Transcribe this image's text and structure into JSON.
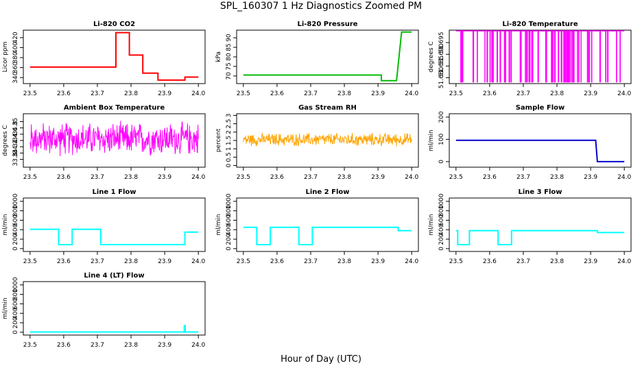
{
  "figure": {
    "title": "SPL_160307  1 Hz Diagnostics Zoomed PM",
    "xlabel": "Hour of Day (UTC)"
  },
  "colors": {
    "red": "#ff0000",
    "green": "#00bb00",
    "magenta": "#ff00ff",
    "orange": "#ffa500",
    "blue": "#0000cc",
    "cyan": "#00ffff"
  },
  "chart_data": [
    {
      "type": "line",
      "title": "Li-820 CO2",
      "ylabel": "Licor ppm",
      "color": "red",
      "mode": "step",
      "xlim": [
        23.48,
        24.02
      ],
      "ylim": [
        328,
        435
      ],
      "yticks": [
        340,
        360,
        380,
        400,
        420
      ],
      "xticks": [
        "23.5",
        "23.6",
        "23.7",
        "23.8",
        "23.9",
        "24.0"
      ],
      "series": [
        {
          "name": "CO2",
          "x": [
            23.5,
            23.755,
            23.755,
            23.795,
            23.795,
            23.835,
            23.835,
            23.88,
            23.88,
            23.96,
            23.96,
            24.0
          ],
          "y": [
            361,
            361,
            430,
            430,
            385,
            385,
            349,
            349,
            335,
            335,
            341,
            341
          ]
        }
      ]
    },
    {
      "type": "line",
      "title": "Li-820 Pressure",
      "ylabel": "kPa",
      "color": "green",
      "mode": "step",
      "xlim": [
        23.48,
        24.02
      ],
      "ylim": [
        66,
        94
      ],
      "yticks": [
        70,
        75,
        80,
        85,
        90
      ],
      "xticks": [
        "23.5",
        "23.6",
        "23.7",
        "23.8",
        "23.9",
        "24.0"
      ],
      "series": [
        {
          "name": "Pressure",
          "x": [
            23.5,
            23.91,
            23.91,
            23.955,
            23.97,
            24.0
          ],
          "y": [
            70.5,
            70.5,
            67.5,
            67.5,
            93,
            93
          ]
        }
      ]
    },
    {
      "type": "line",
      "title": "Li-820 Temperature",
      "ylabel": "degrees C",
      "color": "magenta",
      "mode": "spikes",
      "xlim": [
        23.48,
        24.02
      ],
      "ylim": [
        51.6775,
        51.7003
      ],
      "yticks": [
        51.68,
        51.685,
        51.69,
        51.695
      ],
      "yticklabels": [
        "51.680",
        "51.685",
        "51.690",
        "51.695"
      ],
      "xticks": [
        "23.5",
        "23.6",
        "23.7",
        "23.8",
        "23.9",
        "24.0"
      ],
      "series": [
        {
          "name": "Temperature",
          "base": 51.7,
          "low": 51.678
        }
      ]
    },
    {
      "type": "line",
      "title": "Ambient Box Temperature",
      "ylabel": "degrees C",
      "color": "magenta",
      "mode": "noise",
      "xlim": [
        23.48,
        24.02
      ],
      "ylim": [
        33.55,
        35.25
      ],
      "yticks": [
        33.8,
        34.0,
        34.2,
        34.4,
        34.6,
        34.8,
        35.0
      ],
      "xticks": [
        "23.5",
        "23.6",
        "23.7",
        "23.8",
        "23.9",
        "24.0"
      ],
      "series": [
        {
          "name": "Box Temp",
          "center": 34.45,
          "amplitude": 0.6
        }
      ]
    },
    {
      "type": "line",
      "title": "Gas Stream RH",
      "ylabel": "percent",
      "color": "orange",
      "mode": "noise",
      "xlim": [
        23.48,
        24.02
      ],
      "ylim": [
        -0.1,
        3.1
      ],
      "yticks": [
        0.0,
        0.5,
        1.0,
        1.5,
        2.0,
        2.5,
        3.0
      ],
      "xticks": [
        "23.5",
        "23.6",
        "23.7",
        "23.8",
        "23.9",
        "24.0"
      ],
      "series": [
        {
          "name": "RH",
          "center": 1.55,
          "amplitude": 0.45
        }
      ]
    },
    {
      "type": "line",
      "title": "Sample Flow",
      "ylabel": "ml/min",
      "color": "blue",
      "mode": "step",
      "xlim": [
        23.48,
        24.02
      ],
      "ylim": [
        -25,
        215
      ],
      "yticks": [
        0,
        100,
        200
      ],
      "xticks": [
        "23.5",
        "23.6",
        "23.7",
        "23.8",
        "23.9",
        "24.0"
      ],
      "series": [
        {
          "name": "Sample Flow",
          "x": [
            23.5,
            23.915,
            23.92,
            24.0
          ],
          "y": [
            96,
            96,
            0,
            0
          ]
        }
      ]
    },
    {
      "type": "line",
      "title": "Line 1 Flow",
      "ylabel": "ml/min",
      "color": "cyan",
      "mode": "step",
      "xlim": [
        23.48,
        24.02
      ],
      "ylim": [
        -60,
        1070
      ],
      "yticks": [
        0,
        200,
        400,
        600,
        800,
        1000
      ],
      "xticks": [
        "23.5",
        "23.6",
        "23.7",
        "23.8",
        "23.9",
        "24.0"
      ],
      "series": [
        {
          "name": "Line 1",
          "x": [
            23.5,
            23.585,
            23.585,
            23.625,
            23.625,
            23.71,
            23.71,
            23.96,
            23.96,
            24.0
          ],
          "y": [
            410,
            410,
            85,
            85,
            410,
            410,
            85,
            85,
            350,
            350
          ]
        }
      ]
    },
    {
      "type": "line",
      "title": "Line 2 Flow",
      "ylabel": "ml/min",
      "color": "cyan",
      "mode": "step",
      "xlim": [
        23.48,
        24.02
      ],
      "ylim": [
        -60,
        1070
      ],
      "yticks": [
        0,
        200,
        400,
        600,
        800,
        1000
      ],
      "xticks": [
        "23.5",
        "23.6",
        "23.7",
        "23.8",
        "23.9",
        "24.0"
      ],
      "series": [
        {
          "name": "Line 2",
          "x": [
            23.5,
            23.54,
            23.54,
            23.58,
            23.58,
            23.665,
            23.665,
            23.705,
            23.705,
            23.96,
            23.96,
            24.0
          ],
          "y": [
            450,
            450,
            85,
            85,
            450,
            450,
            85,
            85,
            450,
            450,
            380,
            380
          ]
        }
      ]
    },
    {
      "type": "line",
      "title": "Line 3 Flow",
      "ylabel": "ml/min",
      "color": "cyan",
      "mode": "step",
      "xlim": [
        23.48,
        24.02
      ],
      "ylim": [
        -60,
        1070
      ],
      "yticks": [
        0,
        200,
        400,
        600,
        800,
        1000
      ],
      "xticks": [
        "23.5",
        "23.6",
        "23.7",
        "23.8",
        "23.9",
        "24.0"
      ],
      "series": [
        {
          "name": "Line 3",
          "x": [
            23.5,
            23.505,
            23.505,
            23.54,
            23.54,
            23.625,
            23.625,
            23.665,
            23.665,
            23.92,
            23.92,
            24.0
          ],
          "y": [
            380,
            380,
            85,
            85,
            380,
            380,
            85,
            85,
            380,
            380,
            340,
            340
          ]
        }
      ]
    },
    {
      "type": "line",
      "title": "Line 4 (LT) Flow",
      "ylabel": "ml/min",
      "color": "cyan",
      "mode": "step",
      "xlim": [
        23.48,
        24.02
      ],
      "ylim": [
        -60,
        1070
      ],
      "yticks": [
        0,
        200,
        400,
        600,
        800,
        1000
      ],
      "xticks": [
        "23.5",
        "23.6",
        "23.7",
        "23.8",
        "23.9",
        "24.0"
      ],
      "series": [
        {
          "name": "Line 4",
          "x": [
            23.5,
            23.958,
            23.958,
            23.961,
            23.961,
            24.0
          ],
          "y": [
            5,
            5,
            140,
            140,
            5,
            5
          ]
        }
      ]
    }
  ]
}
